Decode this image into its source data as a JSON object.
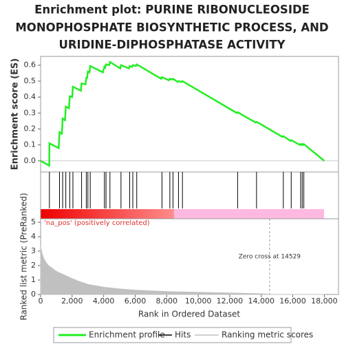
{
  "chart_data": [
    {
      "type": "line",
      "title_lines": [
        "Enrichment plot: PURINE RIBONUCLEOSIDE",
        "MONOPHOSPHATE BIOSYNTHETIC PROCESS, AND",
        "URIDINE-DIPHOSPHATASE ACTIVITY"
      ],
      "y_label": "Enrichment score (ES)",
      "xlim": [
        0,
        18900
      ],
      "ylim": [
        -0.07,
        0.655
      ],
      "yticks": [
        {
          "value": 0,
          "label": "0.0"
        },
        0.1,
        0.2,
        0.3,
        0.4,
        0.5,
        0.6
      ],
      "x": [
        0,
        550,
        560,
        1150,
        1200,
        1350,
        1400,
        1550,
        1600,
        1800,
        1850,
        2000,
        2050,
        2550,
        2600,
        2850,
        2900,
        2950,
        3000,
        3100,
        3150,
        3950,
        4050,
        4100,
        4150,
        4350,
        4400,
        5050,
        5100,
        5600,
        5650,
        5800,
        5850,
        6050,
        6100,
        7650,
        7700,
        8150,
        8200,
        8350,
        8400,
        8700,
        8750,
        8950,
        9000,
        12450,
        12500,
        13650,
        13700,
        15350,
        15400,
        15850,
        15900,
        16450,
        16500,
        16550,
        16600,
        16650,
        16700,
        18000
      ],
      "series": [
        {
          "name": "Enrichment profile",
          "color": "#22ee22",
          "values": [
            0,
            -0.03,
            0.11,
            0.08,
            0.18,
            0.17,
            0.265,
            0.255,
            0.34,
            0.33,
            0.405,
            0.4,
            0.465,
            0.44,
            0.485,
            0.48,
            0.52,
            0.52,
            0.56,
            0.555,
            0.595,
            0.555,
            0.59,
            0.585,
            0.605,
            0.6,
            0.62,
            0.58,
            0.6,
            0.58,
            0.595,
            0.59,
            0.6,
            0.595,
            0.605,
            0.515,
            0.525,
            0.505,
            0.515,
            0.51,
            0.515,
            0.495,
            0.5,
            0.495,
            0.5,
            0.3,
            0.305,
            0.24,
            0.245,
            0.15,
            0.155,
            0.125,
            0.13,
            0.1,
            0.105,
            0.1,
            0.105,
            0.1,
            0.105,
            0
          ]
        }
      ]
    },
    {
      "type": "rug",
      "xlim": [
        0,
        18900
      ],
      "series": [
        {
          "name": "Hits",
          "color": "#000000",
          "values": [
            560,
            1200,
            1400,
            1600,
            1850,
            2050,
            2600,
            2900,
            3000,
            3150,
            4050,
            4150,
            4400,
            5100,
            5650,
            5850,
            6100,
            7700,
            8200,
            8400,
            8750,
            9000,
            12500,
            13700,
            15400,
            15900,
            16500,
            16600,
            16700
          ]
        }
      ]
    },
    {
      "type": "area",
      "x_label": "Rank in Ordered Dataset",
      "y_label": "Ranked list metric (PreRanked)",
      "annotation_pos": "'na_pos' (positively correlated)",
      "zero_cross": {
        "value": 14529,
        "label": "Zero cross at 14529"
      },
      "xlim": [
        0,
        18900
      ],
      "ylim": [
        0,
        5.24
      ],
      "xticks": [
        0,
        {
          "value": 2000,
          "label": "2,000"
        },
        {
          "value": 4000,
          "label": "4,000"
        },
        {
          "value": 6000,
          "label": "6,000"
        },
        {
          "value": 8000,
          "label": "8,000"
        },
        {
          "value": 10000,
          "label": "10,000"
        },
        {
          "value": 12000,
          "label": "12,000"
        },
        {
          "value": 14000,
          "label": "14,000"
        },
        {
          "value": 16000,
          "label": "16,000"
        },
        {
          "value": 18000,
          "label": "18,000"
        }
      ],
      "yticks": [
        0,
        1,
        2,
        3,
        4,
        5
      ],
      "x": [
        0,
        100,
        200,
        350,
        500,
        750,
        1000,
        1500,
        2000,
        2500,
        3000,
        4000,
        5000,
        6000,
        8000,
        10000,
        12000,
        14000,
        14529,
        18000
      ],
      "series": [
        {
          "name": "Ranking metric scores",
          "color": "#c0c0c0",
          "values": [
            3.3,
            2.8,
            2.5,
            2.2,
            2.0,
            1.8,
            1.6,
            1.35,
            1.1,
            0.88,
            0.7,
            0.5,
            0.38,
            0.3,
            0.2,
            0.15,
            0.1,
            0.05,
            0,
            0
          ]
        }
      ]
    }
  ]
}
